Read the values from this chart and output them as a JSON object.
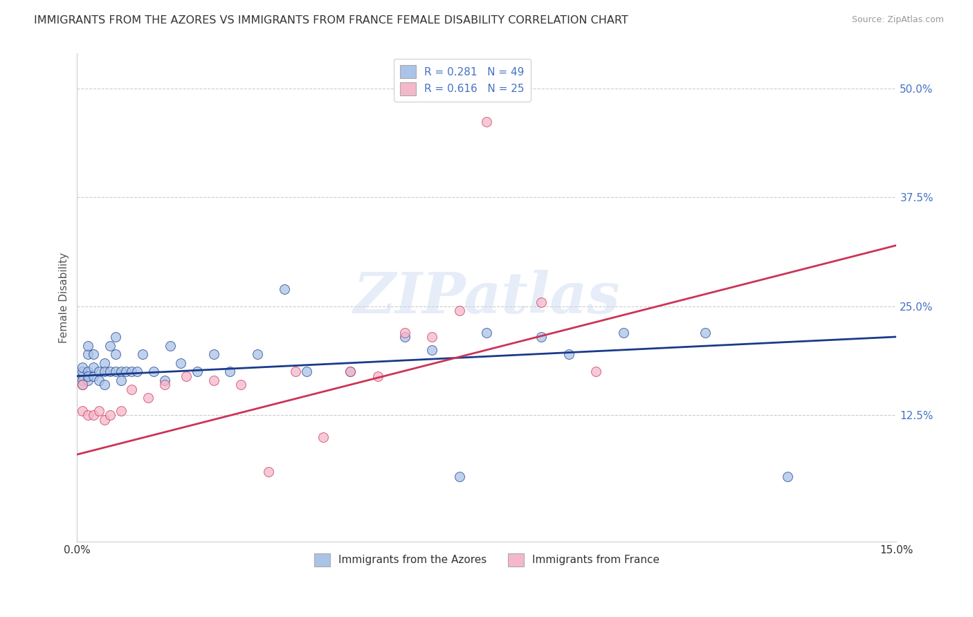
{
  "title": "IMMIGRANTS FROM THE AZORES VS IMMIGRANTS FROM FRANCE FEMALE DISABILITY CORRELATION CHART",
  "source": "Source: ZipAtlas.com",
  "ylabel": "Female Disability",
  "ytick_values": [
    0.125,
    0.25,
    0.375,
    0.5
  ],
  "ytick_labels": [
    "12.5%",
    "25.0%",
    "37.5%",
    "50.0%"
  ],
  "xlim": [
    0.0,
    0.15
  ],
  "ylim": [
    -0.02,
    0.54
  ],
  "legend_label1": "R = 0.281   N = 49",
  "legend_label2": "R = 0.616   N = 25",
  "legend_label_bottom1": "Immigrants from the Azores",
  "legend_label_bottom2": "Immigrants from France",
  "color_blue": "#aac4e8",
  "color_pink": "#f4b8cb",
  "line_color_blue": "#1a3a8a",
  "line_color_pink": "#cc3355",
  "watermark_text": "ZIPatlas",
  "background_color": "#ffffff",
  "grid_color": "#cccccc",
  "azores_x": [
    0.001,
    0.001,
    0.001,
    0.001,
    0.001,
    0.002,
    0.002,
    0.002,
    0.002,
    0.002,
    0.003,
    0.003,
    0.003,
    0.004,
    0.004,
    0.005,
    0.005,
    0.005,
    0.006,
    0.006,
    0.007,
    0.007,
    0.007,
    0.008,
    0.008,
    0.009,
    0.01,
    0.011,
    0.012,
    0.014,
    0.016,
    0.017,
    0.019,
    0.022,
    0.025,
    0.028,
    0.033,
    0.038,
    0.042,
    0.05,
    0.06,
    0.065,
    0.07,
    0.075,
    0.085,
    0.09,
    0.1,
    0.115,
    0.13
  ],
  "azores_y": [
    0.17,
    0.175,
    0.165,
    0.16,
    0.18,
    0.195,
    0.205,
    0.175,
    0.165,
    0.17,
    0.17,
    0.18,
    0.195,
    0.175,
    0.165,
    0.185,
    0.175,
    0.16,
    0.175,
    0.205,
    0.215,
    0.195,
    0.175,
    0.175,
    0.165,
    0.175,
    0.175,
    0.175,
    0.195,
    0.175,
    0.165,
    0.205,
    0.185,
    0.175,
    0.195,
    0.175,
    0.195,
    0.27,
    0.175,
    0.175,
    0.215,
    0.2,
    0.055,
    0.22,
    0.215,
    0.195,
    0.22,
    0.22,
    0.055
  ],
  "france_x": [
    0.001,
    0.001,
    0.002,
    0.003,
    0.004,
    0.005,
    0.006,
    0.008,
    0.01,
    0.013,
    0.016,
    0.02,
    0.025,
    0.03,
    0.035,
    0.04,
    0.045,
    0.05,
    0.055,
    0.06,
    0.065,
    0.07,
    0.075,
    0.085,
    0.095
  ],
  "france_y": [
    0.16,
    0.13,
    0.125,
    0.125,
    0.13,
    0.12,
    0.125,
    0.13,
    0.155,
    0.145,
    0.16,
    0.17,
    0.165,
    0.16,
    0.06,
    0.175,
    0.1,
    0.175,
    0.17,
    0.22,
    0.215,
    0.245,
    0.462,
    0.255,
    0.175
  ]
}
